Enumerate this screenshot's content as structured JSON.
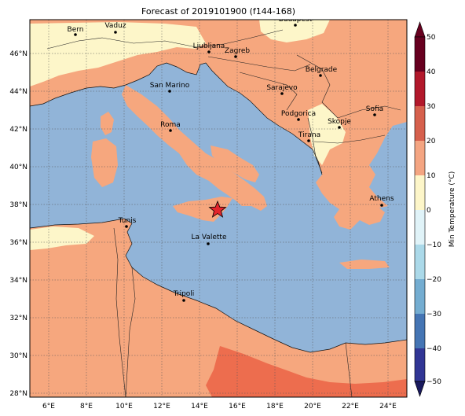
{
  "title": "Forecast of 2019101900 (f144-168)",
  "colorbar": {
    "label": "Min Temperature (°C)",
    "ticks": [
      "50",
      "40",
      "30",
      "20",
      "10",
      "0",
      "−10",
      "−20",
      "−30",
      "−40",
      "−50"
    ],
    "colors": [
      "#67001f",
      "#b2182b",
      "#d6604d",
      "#f4a582",
      "#fddbc7",
      "#fff7bc",
      "#d1e5f0",
      "#92c5de",
      "#4393c3",
      "#2166ac",
      "#053061"
    ]
  },
  "lon_ticks": [
    "6°E",
    "8°E",
    "10°E",
    "12°E",
    "14°E",
    "16°E",
    "18°E",
    "20°E",
    "22°E",
    "24°E"
  ],
  "lat_ticks": [
    "46°N",
    "44°N",
    "42°N",
    "40°N",
    "38°N",
    "36°N",
    "34°N",
    "32°N",
    "30°N",
    "28°N"
  ],
  "cities": [
    {
      "name": "Bern"
    },
    {
      "name": "Vaduz"
    },
    {
      "name": "Budapest"
    },
    {
      "name": "Ljubljana"
    },
    {
      "name": "Zagreb"
    },
    {
      "name": "Belgrade"
    },
    {
      "name": "San Marino"
    },
    {
      "name": "Sarajevo"
    },
    {
      "name": "Sofia"
    },
    {
      "name": "Podgorica"
    },
    {
      "name": "Skopje"
    },
    {
      "name": "Roma"
    },
    {
      "name": "Tirana"
    },
    {
      "name": "Athens"
    },
    {
      "name": "Tunis"
    },
    {
      "name": "La Valette"
    },
    {
      "name": "Tripoli"
    }
  ],
  "colors": {
    "sea": "#91b4d8",
    "land_warm": "#f6a77e",
    "land_cool": "#fdf6c9",
    "land_hot": "#ed6d4e"
  }
}
